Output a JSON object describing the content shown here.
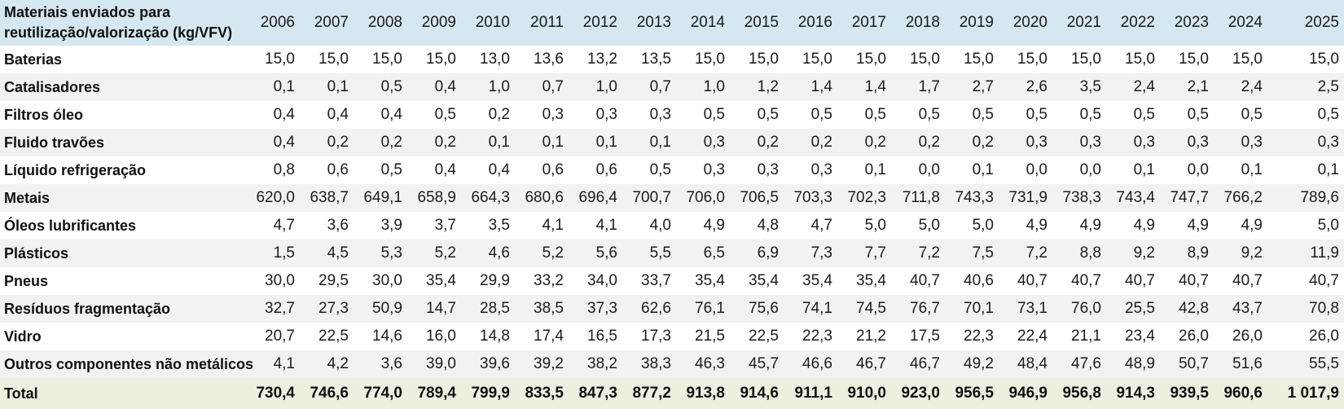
{
  "colors": {
    "header_bg": "#d5e7f0",
    "stripe_bg": "#f2f2f2",
    "total_bg": "#ebf1de",
    "text": "#1c1c1c"
  },
  "chart_data": {
    "type": "table",
    "title": "Materiais enviados para reutilização/valorização (kg/VFV)",
    "title_lines": [
      "Materiais enviados para",
      "reutilização/valorização (kg/VFV)"
    ],
    "unit": "kg/VFV",
    "decimal_separator": ",",
    "columns": [
      "2006",
      "2007",
      "2008",
      "2009",
      "2010",
      "2011",
      "2012",
      "2013",
      "2014",
      "2015",
      "2016",
      "2017",
      "2018",
      "2019",
      "2020",
      "2021",
      "2022",
      "2023",
      "2024",
      "2025"
    ],
    "series": [
      {
        "name": "Baterias",
        "values": [
          "15,0",
          "15,0",
          "15,0",
          "15,0",
          "13,0",
          "13,6",
          "13,2",
          "13,5",
          "15,0",
          "15,0",
          "15,0",
          "15,0",
          "15,0",
          "15,0",
          "15,0",
          "15,0",
          "15,0",
          "15,0",
          "15,0",
          "15,0"
        ]
      },
      {
        "name": "Catalisadores",
        "values": [
          "0,1",
          "0,1",
          "0,5",
          "0,4",
          "1,0",
          "0,7",
          "1,0",
          "0,7",
          "1,0",
          "1,2",
          "1,4",
          "1,4",
          "1,7",
          "2,7",
          "2,6",
          "3,5",
          "2,4",
          "2,1",
          "2,4",
          "2,5"
        ]
      },
      {
        "name": "Filtros óleo",
        "values": [
          "0,4",
          "0,4",
          "0,4",
          "0,5",
          "0,2",
          "0,3",
          "0,3",
          "0,3",
          "0,5",
          "0,5",
          "0,5",
          "0,5",
          "0,5",
          "0,5",
          "0,5",
          "0,5",
          "0,5",
          "0,5",
          "0,5",
          "0,5"
        ]
      },
      {
        "name": "Fluido travões",
        "values": [
          "0,4",
          "0,2",
          "0,2",
          "0,2",
          "0,1",
          "0,1",
          "0,1",
          "0,1",
          "0,3",
          "0,2",
          "0,2",
          "0,2",
          "0,2",
          "0,2",
          "0,3",
          "0,3",
          "0,3",
          "0,3",
          "0,3",
          "0,3"
        ]
      },
      {
        "name": "Líquido refrigeração",
        "values": [
          "0,8",
          "0,6",
          "0,5",
          "0,4",
          "0,4",
          "0,6",
          "0,6",
          "0,5",
          "0,3",
          "0,3",
          "0,3",
          "0,1",
          "0,0",
          "0,1",
          "0,0",
          "0,0",
          "0,1",
          "0,0",
          "0,1",
          "0,1"
        ]
      },
      {
        "name": "Metais",
        "values": [
          "620,0",
          "638,7",
          "649,1",
          "658,9",
          "664,3",
          "680,6",
          "696,4",
          "700,7",
          "706,0",
          "706,5",
          "703,3",
          "702,3",
          "711,8",
          "743,3",
          "731,9",
          "738,3",
          "743,4",
          "747,7",
          "766,2",
          "789,6"
        ]
      },
      {
        "name": "Óleos lubrificantes",
        "values": [
          "4,7",
          "3,6",
          "3,9",
          "3,7",
          "3,5",
          "4,1",
          "4,1",
          "4,0",
          "4,9",
          "4,8",
          "4,7",
          "5,0",
          "5,0",
          "5,0",
          "4,9",
          "4,9",
          "4,9",
          "4,9",
          "4,9",
          "5,0"
        ]
      },
      {
        "name": "Plásticos",
        "values": [
          "1,5",
          "4,5",
          "5,3",
          "5,2",
          "4,6",
          "5,2",
          "5,6",
          "5,5",
          "6,5",
          "6,9",
          "7,3",
          "7,7",
          "7,2",
          "7,5",
          "7,2",
          "8,8",
          "9,2",
          "8,9",
          "9,2",
          "11,9"
        ]
      },
      {
        "name": "Pneus",
        "values": [
          "30,0",
          "29,5",
          "30,0",
          "35,4",
          "29,9",
          "33,2",
          "34,0",
          "33,7",
          "35,4",
          "35,4",
          "35,4",
          "35,4",
          "40,7",
          "40,6",
          "40,7",
          "40,7",
          "40,7",
          "40,7",
          "40,7",
          "40,7"
        ]
      },
      {
        "name": "Resíduos fragmentação",
        "values": [
          "32,7",
          "27,3",
          "50,9",
          "14,7",
          "28,5",
          "38,5",
          "37,3",
          "62,6",
          "76,1",
          "75,6",
          "74,1",
          "74,5",
          "76,7",
          "70,1",
          "73,1",
          "76,0",
          "25,5",
          "42,8",
          "43,7",
          "70,8"
        ]
      },
      {
        "name": "Vidro",
        "values": [
          "20,7",
          "22,5",
          "14,6",
          "16,0",
          "14,8",
          "17,4",
          "16,5",
          "17,3",
          "21,5",
          "22,5",
          "22,3",
          "21,2",
          "17,5",
          "22,3",
          "22,4",
          "21,1",
          "23,4",
          "26,0",
          "26,0",
          "26,0"
        ]
      },
      {
        "name": "Outros componentes não metálicos",
        "values": [
          "4,1",
          "4,2",
          "3,6",
          "39,0",
          "39,6",
          "39,2",
          "38,2",
          "38,3",
          "46,3",
          "45,7",
          "46,6",
          "46,7",
          "46,7",
          "49,2",
          "48,4",
          "47,6",
          "48,9",
          "50,7",
          "51,6",
          "55,5"
        ]
      }
    ],
    "total": {
      "name": "Total",
      "values": [
        "730,4",
        "746,6",
        "774,0",
        "789,4",
        "799,9",
        "833,5",
        "847,3",
        "877,2",
        "913,8",
        "914,6",
        "911,1",
        "910,0",
        "923,0",
        "956,5",
        "946,9",
        "956,8",
        "914,3",
        "939,5",
        "960,6",
        "1 017,9"
      ]
    }
  }
}
